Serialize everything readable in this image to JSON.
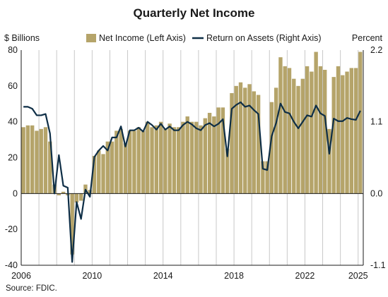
{
  "chart_data": {
    "type": "bar",
    "title": "Quarterly Net Income",
    "left_axis_label": "$ Billions",
    "right_axis_label": "Percent",
    "source": "Source: FDIC.",
    "left_ylim": [
      -40,
      80
    ],
    "right_ylim": [
      -1.1,
      2.2
    ],
    "left_ticks": [
      "80",
      "60",
      "40",
      "20",
      "0",
      "-20",
      "-40"
    ],
    "right_ticks": [
      "2.2",
      "1.1",
      "0.0",
      "-1.1"
    ],
    "x_tick_labels": [
      "2006",
      "2010",
      "2014",
      "2018",
      "2022",
      "2025"
    ],
    "grid": "vertical lines between years",
    "colors": {
      "bar": "#b5a46a",
      "line": "#0e2e46",
      "grid": "#c8c8c8",
      "axis": "#1a1a1a"
    },
    "series": [
      {
        "name": "Net Income (Left Axis)",
        "kind": "bar",
        "axis": "left",
        "values": [
          37,
          38,
          38,
          35,
          36,
          37,
          29,
          5,
          -1,
          1,
          -1,
          -34,
          -5,
          -4,
          5,
          2,
          21,
          24,
          22,
          29,
          29,
          35,
          36,
          28,
          35,
          35,
          37,
          35,
          40,
          37,
          38,
          40,
          36,
          39,
          37,
          37,
          40,
          43,
          40,
          40,
          38,
          42,
          45,
          43,
          48,
          48,
          25,
          56,
          60,
          62,
          59,
          61,
          57,
          55,
          18,
          18,
          51,
          59,
          76,
          71,
          70,
          64,
          60,
          64,
          71,
          68,
          79,
          71,
          69,
          36,
          65,
          71,
          66,
          68,
          70,
          70,
          79
        ]
      },
      {
        "name": "Return on Assets (Right Axis)",
        "kind": "line",
        "axis": "right",
        "values": [
          1.33,
          1.33,
          1.3,
          1.2,
          1.2,
          1.22,
          0.92,
          0.0,
          0.59,
          0.12,
          0.09,
          -1.05,
          -0.13,
          -0.39,
          0.06,
          -0.05,
          0.56,
          0.66,
          0.73,
          0.66,
          0.86,
          0.86,
          1.03,
          0.72,
          0.97,
          0.97,
          1.01,
          0.95,
          1.1,
          1.05,
          0.98,
          1.07,
          0.98,
          1.03,
          0.97,
          0.97,
          1.05,
          1.1,
          1.06,
          1.0,
          0.97,
          1.05,
          1.08,
          1.03,
          1.07,
          1.14,
          0.57,
          1.3,
          1.36,
          1.4,
          1.33,
          1.35,
          1.28,
          1.22,
          0.38,
          0.36,
          0.88,
          1.08,
          1.38,
          1.25,
          1.23,
          1.1,
          1.0,
          1.1,
          1.2,
          1.18,
          1.35,
          1.23,
          1.19,
          0.61,
          1.15,
          1.11,
          1.11,
          1.16,
          1.14,
          1.13,
          1.27
        ]
      }
    ]
  }
}
